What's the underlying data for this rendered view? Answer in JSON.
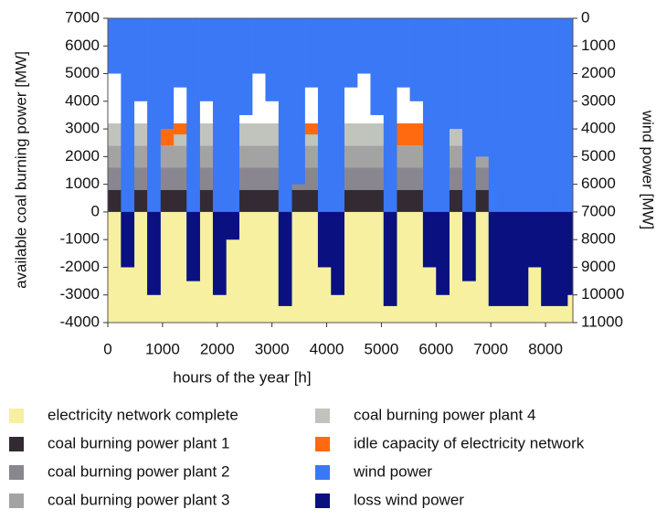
{
  "chart_data": {
    "type": "area",
    "xlabel": "hours of the year [h]",
    "ylabel": "available coal burning power [MW]",
    "y2label": "wind power [MW]",
    "xlim": [
      0,
      8500
    ],
    "xticks": [
      0,
      1000,
      2000,
      3000,
      4000,
      5000,
      6000,
      7000,
      8000
    ],
    "ylim": [
      -4000,
      7000
    ],
    "yticks": [
      -4000,
      -3000,
      -2000,
      -1000,
      0,
      1000,
      2000,
      3000,
      4000,
      5000,
      6000,
      7000
    ],
    "y2lim": [
      11000,
      0
    ],
    "y2ticks": [
      0,
      1000,
      2000,
      3000,
      4000,
      5000,
      6000,
      7000,
      8000,
      9000,
      10000,
      11000
    ],
    "x": [
      0,
      240,
      480,
      720,
      960,
      1200,
      1440,
      1680,
      1920,
      2160,
      2400,
      2640,
      2880,
      3120,
      3360,
      3600,
      3840,
      4080,
      4320,
      4560,
      4800,
      5040,
      5280,
      5520,
      5760,
      6000,
      6240,
      6480,
      6720,
      6960,
      7200,
      7440,
      7680,
      7920,
      8160,
      8400
    ],
    "series": [
      {
        "name": "electricity network complete",
        "color": "#f6f0a0",
        "value": -4000
      },
      {
        "name": "coal burning power plant 1",
        "color": "#332a34",
        "value": 800
      },
      {
        "name": "coal burning power plant 2",
        "color": "#8a8690",
        "value": 800
      },
      {
        "name": "coal burning power plant 3",
        "color": "#a3a3a3",
        "value": 800
      },
      {
        "name": "coal burning power plant 4",
        "color": "#c0c4bc",
        "value": 800
      },
      {
        "name": "idle capacity of electricity network",
        "color": "#ff6a10",
        "values": [
          0,
          0,
          0,
          0,
          800,
          400,
          0,
          0,
          0,
          0,
          0,
          0,
          0,
          0,
          0,
          400,
          0,
          0,
          0,
          0,
          0,
          0,
          800,
          800,
          0,
          0,
          0,
          0,
          0,
          0,
          0,
          0,
          0,
          0,
          0,
          0
        ]
      },
      {
        "name": "wind power",
        "color": "#3a78f5",
        "axis": "y2",
        "values": [
          2000,
          9000,
          3000,
          10000,
          4000,
          2500,
          9500,
          3000,
          10000,
          8000,
          3500,
          2000,
          3000,
          10400,
          6000,
          2500,
          9000,
          10000,
          2500,
          2000,
          3500,
          10400,
          2500,
          3000,
          9000,
          10000,
          4000,
          9500,
          5000,
          10400,
          10400,
          10400,
          9000,
          10400,
          10400,
          10000
        ]
      },
      {
        "name": "loss wind power",
        "color": "#0a1080",
        "values": [
          0,
          2000,
          0,
          3000,
          0,
          0,
          2500,
          0,
          3000,
          1000,
          0,
          0,
          0,
          3400,
          0,
          0,
          2000,
          3000,
          0,
          0,
          0,
          3400,
          0,
          0,
          2000,
          3000,
          0,
          2500,
          0,
          3400,
          3400,
          3400,
          2000,
          3400,
          3400,
          3000
        ]
      }
    ]
  }
}
